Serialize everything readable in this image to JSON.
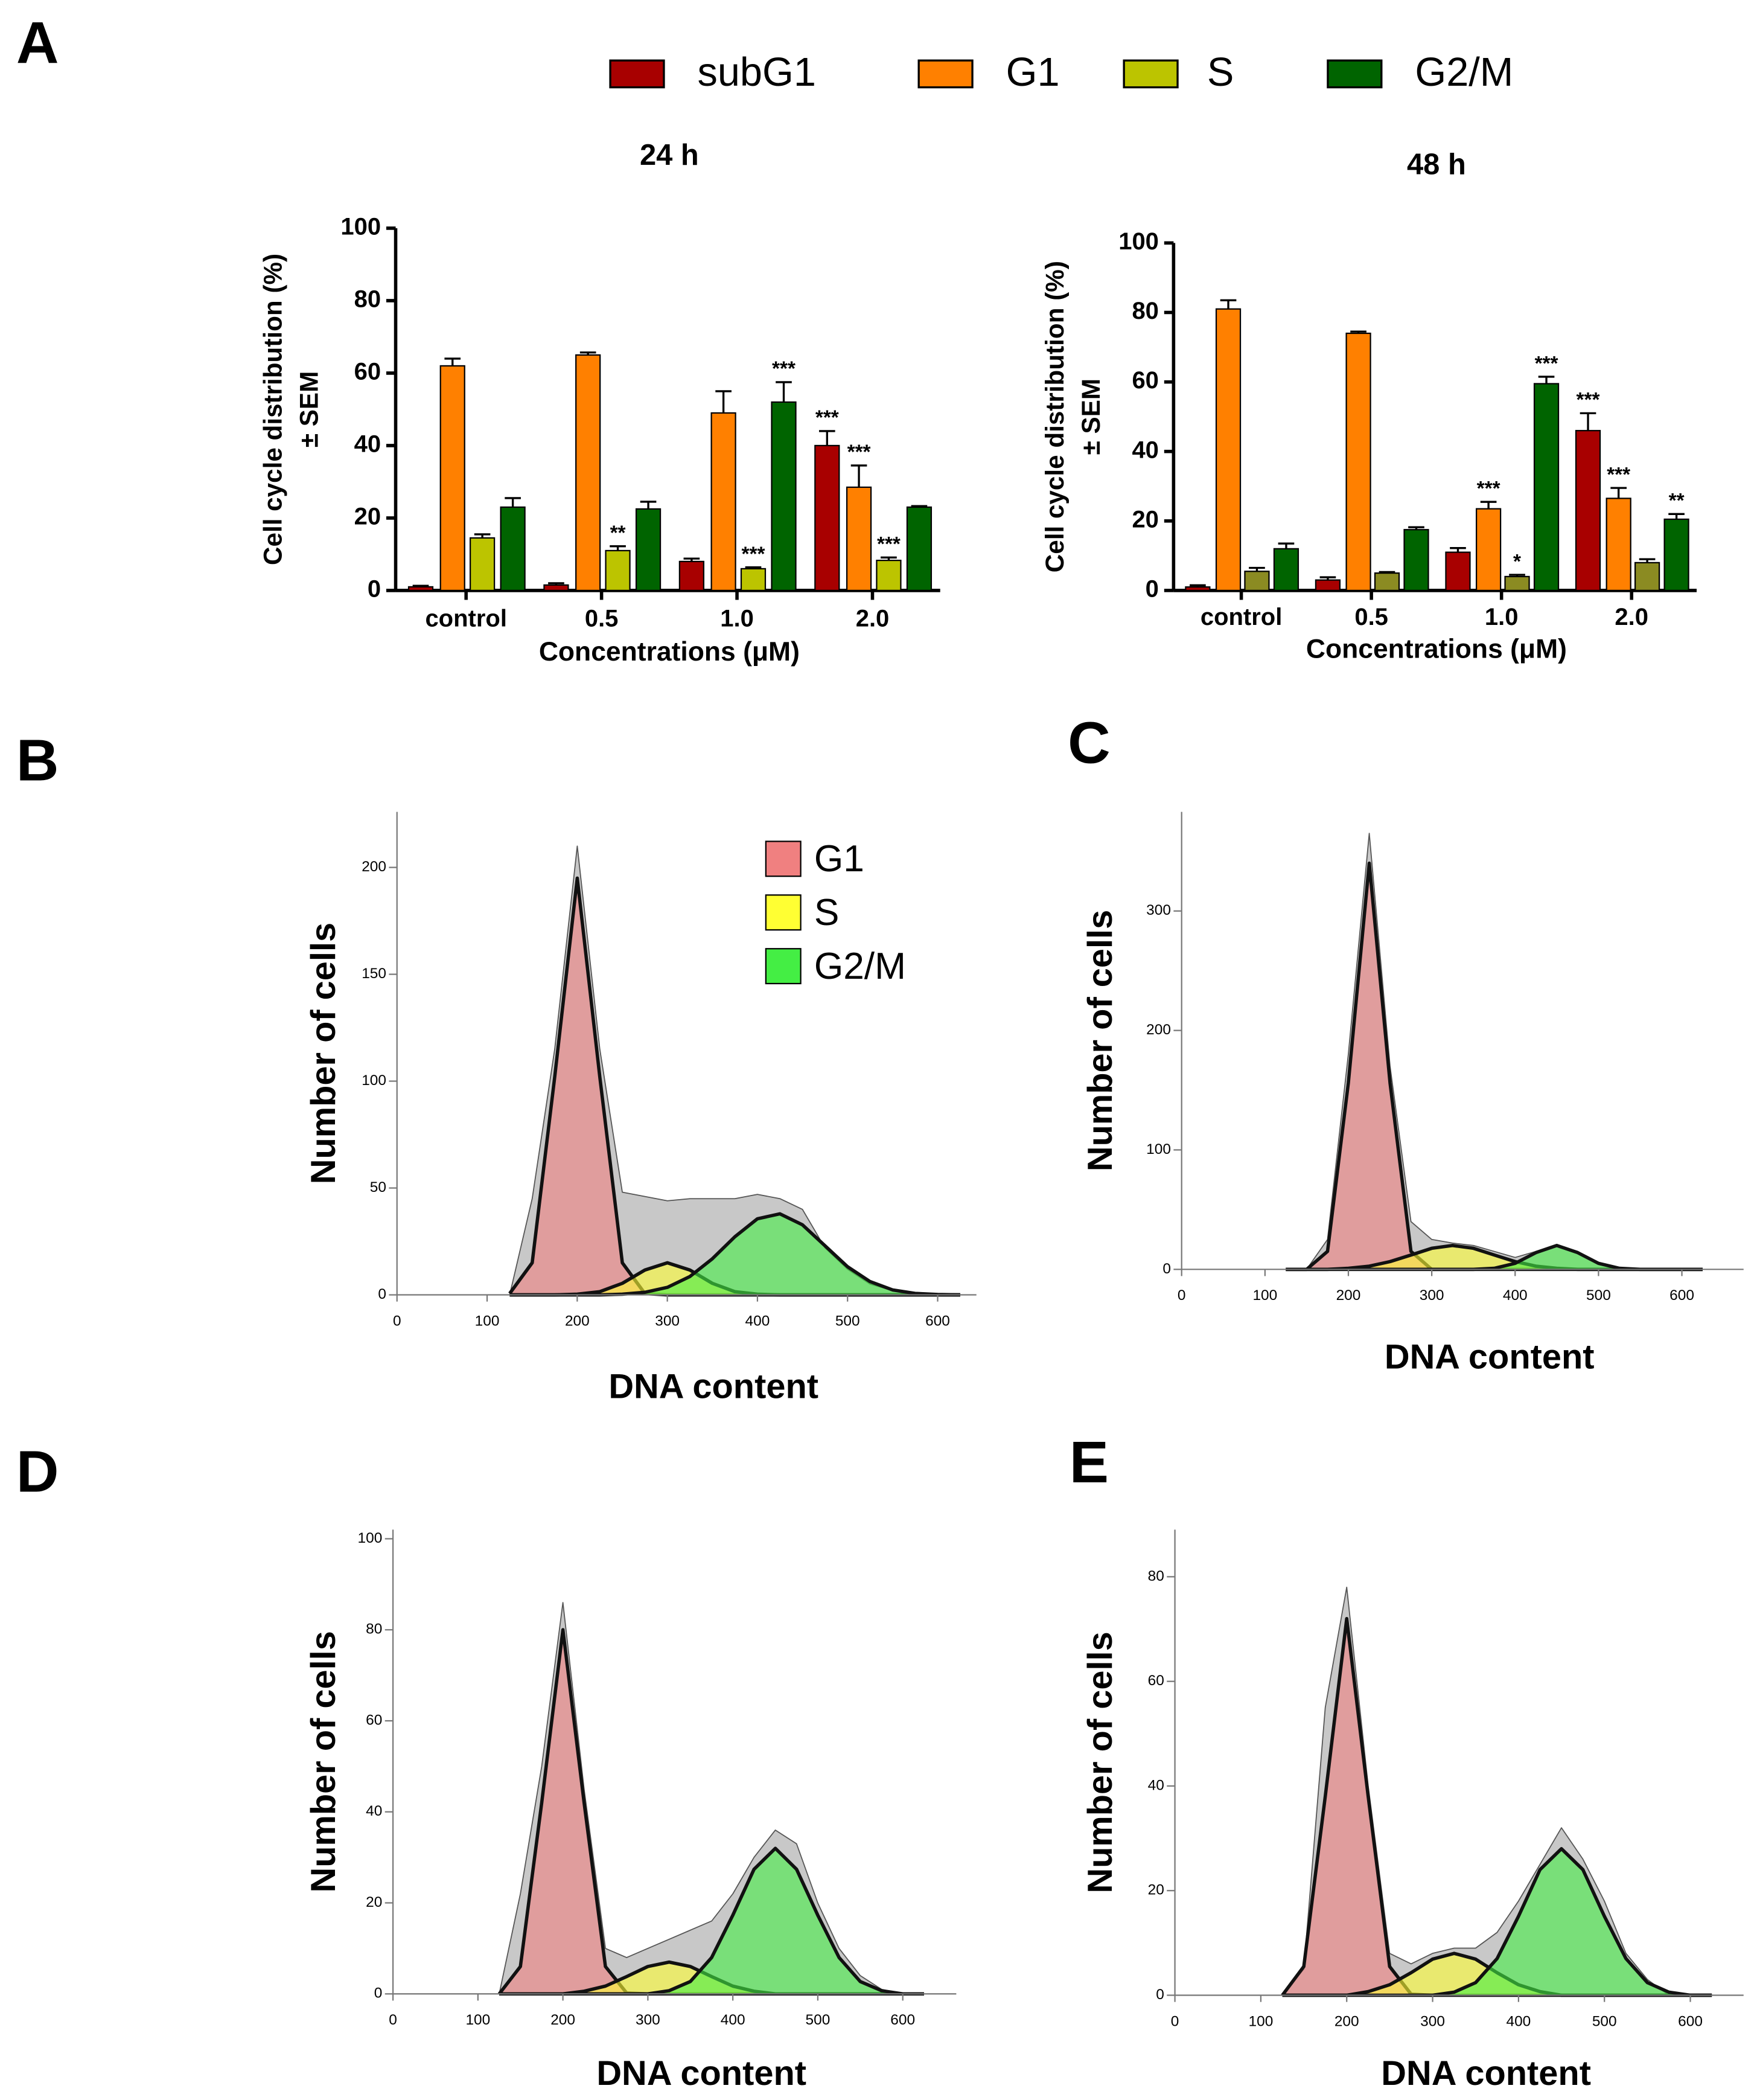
{
  "panels": [
    "A",
    "B",
    "C",
    "D",
    "E"
  ],
  "chart_data": [
    {
      "type": "bar",
      "title": "24 h",
      "ylabel": [
        "Cell cycle distribution (%)",
        "± SEM"
      ],
      "xlabel": "Concentrations (μM)",
      "categories": [
        "control",
        "0.5",
        "1.0",
        "2.0"
      ],
      "ylim": [
        0,
        100
      ],
      "yticks": [
        0,
        20,
        40,
        60,
        80,
        100
      ],
      "legend": "top",
      "series": [
        {
          "name": "subG1",
          "color": "#a80000",
          "values": [
            1,
            1.5,
            8,
            40
          ],
          "errors": [
            0.3,
            0.5,
            0.8,
            4
          ],
          "significance": [
            null,
            null,
            null,
            "***"
          ]
        },
        {
          "name": "G1",
          "color": "#ff8000",
          "values": [
            62,
            65,
            49,
            28.5
          ],
          "errors": [
            2,
            0.7,
            6,
            6
          ],
          "significance": [
            null,
            null,
            null,
            "***"
          ]
        },
        {
          "name": "S",
          "color": "#bcc400",
          "values": [
            14.5,
            11,
            6,
            8.3
          ],
          "errors": [
            1,
            1.2,
            0.4,
            0.8
          ],
          "significance": [
            null,
            "**",
            "***",
            "***"
          ]
        },
        {
          "name": "G2/M",
          "color": "#006400",
          "values": [
            23,
            22.5,
            52,
            23
          ],
          "errors": [
            2.5,
            2,
            5.5,
            0.3
          ],
          "significance": [
            null,
            null,
            "***",
            null
          ]
        }
      ]
    },
    {
      "type": "bar",
      "title": "48 h",
      "ylabel": [
        "Cell cycle distribution (%)",
        "± SEM"
      ],
      "xlabel": "Concentrations (μM)",
      "categories": [
        "control",
        "0.5",
        "1.0",
        "2.0"
      ],
      "ylim": [
        0,
        100
      ],
      "yticks": [
        0,
        20,
        40,
        60,
        80,
        100
      ],
      "series": [
        {
          "color": "#a80000",
          "values": [
            1,
            3,
            11,
            46
          ],
          "errors": [
            0.5,
            0.8,
            1.2,
            5
          ],
          "significance": [
            null,
            null,
            null,
            "***"
          ]
        },
        {
          "color": "#ff8000",
          "values": [
            81,
            74,
            23.5,
            26.5
          ],
          "errors": [
            2.5,
            0.5,
            2,
            3
          ],
          "significance": [
            null,
            null,
            "***",
            "***"
          ]
        },
        {
          "color": "#8b8b22",
          "values": [
            5.5,
            5,
            4,
            8
          ],
          "errors": [
            1,
            0.3,
            0.5,
            1
          ],
          "significance": [
            null,
            null,
            "*",
            null
          ]
        },
        {
          "color": "#006400",
          "values": [
            12,
            17.5,
            59.5,
            20.5
          ],
          "errors": [
            1.5,
            0.7,
            2,
            1.5
          ],
          "significance": [
            null,
            null,
            "***",
            "**"
          ]
        }
      ]
    },
    {
      "type": "area",
      "ylabel": "Number of cells",
      "xlabel": "DNA content",
      "xlim": [
        0,
        643
      ],
      "ylim": [
        0,
        226
      ],
      "xticks": [
        0,
        100,
        200,
        300,
        400,
        500,
        600
      ],
      "yticks": [
        0,
        50,
        100,
        150,
        200
      ],
      "legend": "upper right",
      "x": [
        125,
        150,
        175,
        200,
        225,
        250,
        275,
        300,
        325,
        350,
        375,
        400,
        425,
        450,
        475,
        500,
        525,
        550,
        575,
        600,
        625
      ],
      "series": [
        {
          "color": "#c8c8c8",
          "line_color": "#555555",
          "values": [
            0,
            45,
            115,
            210,
            115,
            48,
            46,
            44,
            45,
            45,
            45,
            47,
            45,
            40,
            22,
            12,
            5,
            2,
            0,
            0,
            0
          ]
        },
        {
          "name": "G1",
          "color": "#f08080",
          "line_color": "#111111",
          "values": [
            0.6,
            15,
            102,
            195,
            102,
            15,
            0.6,
            0,
            0,
            0,
            0,
            0,
            0,
            0,
            0,
            0,
            0,
            0,
            0,
            0,
            0
          ]
        },
        {
          "name": "S",
          "color": "#ffff33",
          "line_color": "#111111",
          "values": [
            0,
            0,
            0,
            0.3,
            1.5,
            5.4,
            11.6,
            15,
            11.6,
            5.4,
            1.5,
            0.3,
            0,
            0,
            0,
            0,
            0,
            0,
            0,
            0,
            0
          ]
        },
        {
          "name": "G2/M",
          "color": "#44ee44",
          "line_color": "#111111",
          "values": [
            0,
            0,
            0,
            0,
            0,
            0.3,
            1.2,
            3.5,
            8.6,
            16.9,
            27.2,
            35.6,
            37.9,
            32.8,
            23,
            13.2,
            6.2,
            2.3,
            0.7,
            0.2,
            0
          ]
        }
      ]
    },
    {
      "type": "area",
      "ylabel": "Number of cells",
      "xlabel": "DNA content",
      "xlim": [
        0,
        674
      ],
      "ylim": [
        0,
        383
      ],
      "xticks": [
        0,
        100,
        200,
        300,
        400,
        500,
        600
      ],
      "yticks": [
        0,
        100,
        200,
        300
      ],
      "x": [
        125,
        150,
        175,
        200,
        225,
        250,
        275,
        300,
        325,
        350,
        375,
        400,
        425,
        450,
        475,
        500,
        525,
        550,
        575,
        600,
        625
      ],
      "series": [
        {
          "color": "#c8c8c8",
          "line_color": "#555555",
          "values": [
            0,
            0,
            25,
            180,
            365,
            170,
            40,
            25,
            22,
            20,
            15,
            10,
            15,
            20,
            15,
            5,
            1,
            0,
            0,
            0,
            0
          ]
        },
        {
          "color": "#f08080",
          "line_color": "#111111",
          "values": [
            0,
            0,
            15,
            156,
            340,
            156,
            15,
            0,
            0,
            0,
            0,
            0,
            0,
            0,
            0,
            0,
            0,
            0,
            0,
            0,
            0
          ]
        },
        {
          "color": "#ffff33",
          "line_color": "#111111",
          "values": [
            0,
            0,
            0,
            0.9,
            2.7,
            6.5,
            12,
            17.6,
            20,
            17.6,
            12,
            6.5,
            2.7,
            0.9,
            0,
            0,
            0,
            0,
            0,
            0,
            0
          ]
        },
        {
          "color": "#44ee44",
          "line_color": "#111111",
          "values": [
            0,
            0,
            0,
            0,
            0,
            0,
            0,
            0,
            0,
            0,
            0.9,
            5,
            14,
            20,
            14,
            5,
            0.9,
            0,
            0,
            0,
            0
          ]
        }
      ]
    },
    {
      "type": "area",
      "ylabel": "Number of cells",
      "xlabel": "DNA content",
      "xlim": [
        0,
        663
      ],
      "ylim": [
        0,
        102
      ],
      "xticks": [
        0,
        100,
        200,
        300,
        400,
        500,
        600
      ],
      "yticks": [
        0,
        20,
        40,
        60,
        80,
        100
      ],
      "x": [
        125,
        150,
        175,
        200,
        225,
        250,
        275,
        300,
        325,
        350,
        375,
        400,
        425,
        450,
        475,
        500,
        525,
        550,
        575,
        600,
        625
      ],
      "series": [
        {
          "color": "#c8c8c8",
          "line_color": "#555555",
          "values": [
            0,
            22,
            50,
            86,
            45,
            10,
            8,
            10,
            12,
            14,
            16,
            22,
            30,
            36,
            33,
            20,
            10,
            4,
            1,
            0,
            0
          ]
        },
        {
          "color": "#f08080",
          "line_color": "#111111",
          "values": [
            0,
            6,
            42,
            80,
            42,
            6,
            0.2,
            0,
            0,
            0,
            0,
            0,
            0,
            0,
            0,
            0,
            0,
            0,
            0,
            0,
            0
          ]
        },
        {
          "color": "#ffff33",
          "line_color": "#111111",
          "values": [
            0,
            0,
            0,
            0,
            0.6,
            1.7,
            3.8,
            6,
            7,
            6,
            3.8,
            1.7,
            0.6,
            0,
            0,
            0,
            0,
            0,
            0,
            0,
            0
          ]
        },
        {
          "color": "#44ee44",
          "line_color": "#111111",
          "values": [
            0,
            0,
            0,
            0,
            0,
            0,
            0,
            0,
            0.7,
            2.7,
            8,
            17.3,
            27.4,
            32,
            27.4,
            17.3,
            8,
            2.7,
            0.7,
            0,
            0
          ]
        }
      ]
    },
    {
      "type": "area",
      "ylabel": "Number of cells",
      "xlabel": "DNA content",
      "xlim": [
        0,
        662
      ],
      "ylim": [
        0,
        89
      ],
      "xticks": [
        0,
        100,
        200,
        300,
        400,
        500,
        600
      ],
      "yticks": [
        0,
        20,
        40,
        60,
        80
      ],
      "x": [
        125,
        150,
        175,
        200,
        225,
        250,
        275,
        300,
        325,
        350,
        375,
        400,
        425,
        450,
        475,
        500,
        525,
        550,
        575,
        600,
        625
      ],
      "series": [
        {
          "color": "#c8c8c8",
          "line_color": "#555555",
          "values": [
            0,
            5,
            55,
            78,
            40,
            8,
            6,
            8,
            9,
            9,
            12,
            18,
            25,
            32,
            26,
            18,
            8,
            3,
            0,
            0,
            0
          ]
        },
        {
          "color": "#f08080",
          "line_color": "#111111",
          "values": [
            0,
            5.5,
            38,
            72,
            38,
            5.5,
            0.2,
            0,
            0,
            0,
            0,
            0,
            0,
            0,
            0,
            0,
            0,
            0,
            0,
            0,
            0
          ]
        },
        {
          "color": "#ffff33",
          "line_color": "#111111",
          "values": [
            0,
            0,
            0,
            0,
            0.7,
            2,
            4.3,
            6.9,
            8,
            6.9,
            4.3,
            2,
            0.7,
            0,
            0,
            0,
            0,
            0,
            0,
            0,
            0
          ]
        },
        {
          "color": "#44ee44",
          "line_color": "#111111",
          "values": [
            0,
            0,
            0,
            0,
            0,
            0,
            0,
            0,
            0.6,
            2.4,
            7,
            15.1,
            24,
            28,
            24,
            15.1,
            7,
            2.4,
            0.6,
            0,
            0
          ]
        }
      ]
    }
  ]
}
